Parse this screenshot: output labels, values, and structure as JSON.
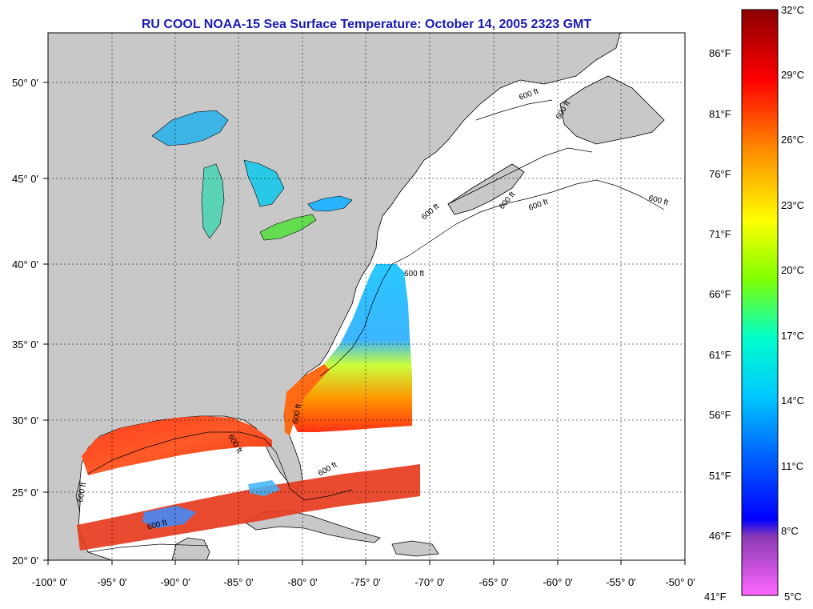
{
  "title": "RU COOL  NOAA-15  Sea Surface Temperature:  October 14, 2005 2323 GMT",
  "x_ticks": [
    "-100° 0'",
    "-95° 0'",
    "-90° 0'",
    "-85° 0'",
    "-80° 0'",
    "-75° 0'",
    "-70° 0'",
    "-65° 0'",
    "-60° 0'",
    "-55° 0'",
    "-50° 0'"
  ],
  "y_ticks": [
    "50° 0'",
    "45° 0'",
    "40° 0'",
    "35° 0'",
    "30° 0'",
    "25° 0'",
    "20° 0'"
  ],
  "isobath_labels": [
    "600 ft",
    "600 ft",
    "600 ft",
    "600 ft",
    "600 ft",
    "600 ft",
    "600 ft",
    "600 ft",
    "600 ft",
    "600 ft",
    "600 ft",
    "600 ft"
  ],
  "colorbar": {
    "celsius": [
      "32°C",
      "29°C",
      "26°C",
      "23°C",
      "20°C",
      "17°C",
      "14°C",
      "11°C",
      "8°C",
      "5°C"
    ],
    "fahrenheit": [
      "86°F",
      "81°F",
      "76°F",
      "71°F",
      "66°F",
      "61°F",
      "56°F",
      "51°F",
      "46°F",
      "41°F"
    ],
    "colors": [
      "#8b0000",
      "#ff0000",
      "#ff8c00",
      "#ffff00",
      "#7fff00",
      "#00e5ff",
      "#0064ff",
      "#0000ff",
      "#8b3ab4",
      "#ff3cdc",
      "#ff66ff"
    ]
  },
  "colors": {
    "land": "#c8c8c8",
    "ocean": "#ffffff",
    "title": "#1a1ab4"
  }
}
